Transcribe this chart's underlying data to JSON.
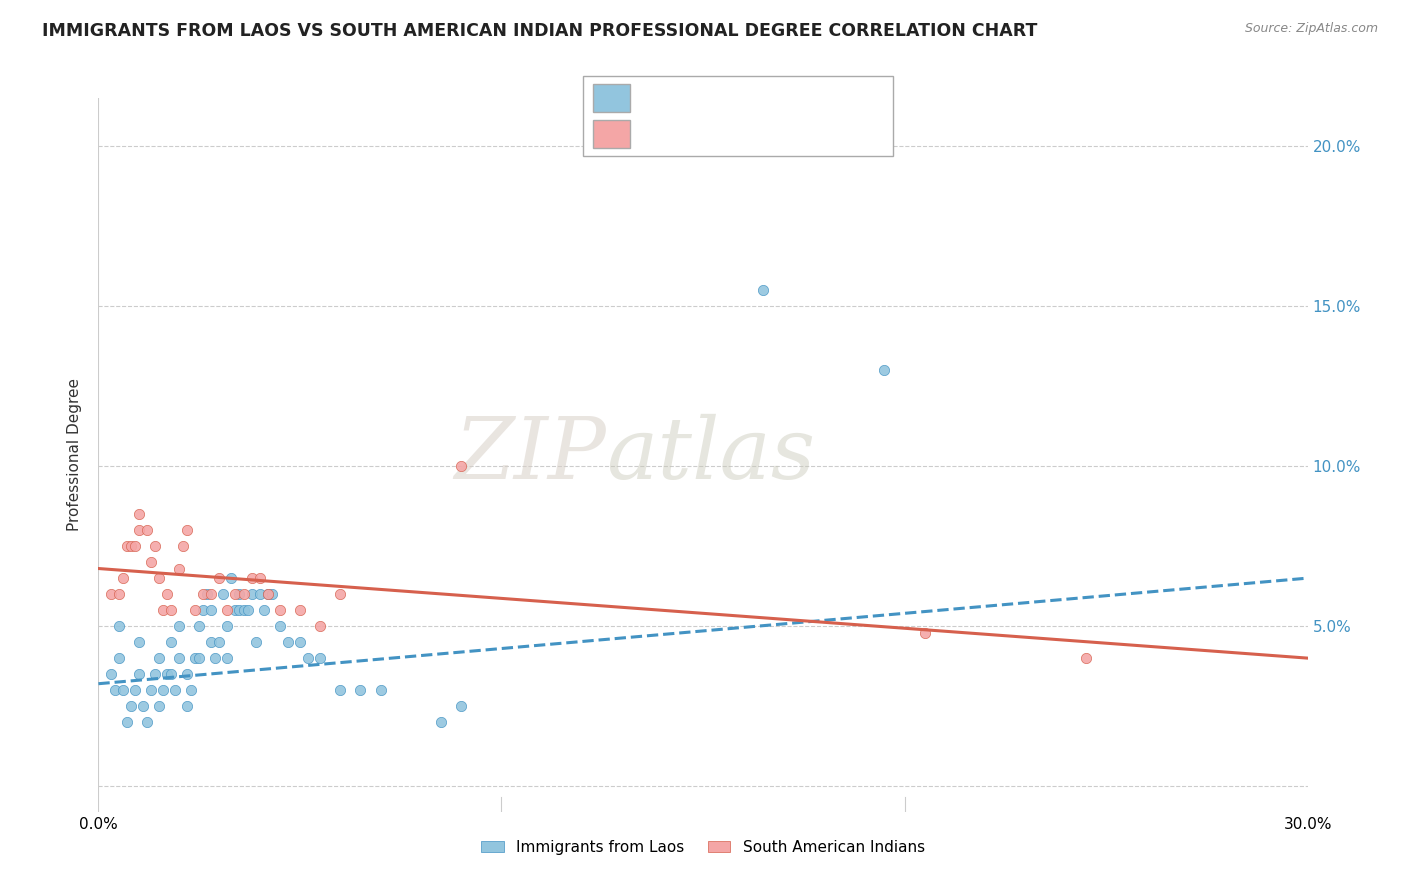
{
  "title": "IMMIGRANTS FROM LAOS VS SOUTH AMERICAN INDIAN PROFESSIONAL DEGREE CORRELATION CHART",
  "source": "Source: ZipAtlas.com",
  "ylabel": "Professional Degree",
  "watermark_zip": "ZIP",
  "watermark_atlas": "atlas",
  "xlim": [
    0.0,
    0.3
  ],
  "ylim": [
    -0.008,
    0.215
  ],
  "yticks": [
    0.0,
    0.05,
    0.1,
    0.15,
    0.2
  ],
  "color_blue": "#92c5de",
  "color_pink": "#f4a6a6",
  "color_blue_line": "#4393c3",
  "color_pink_line": "#d6604d",
  "color_grid": "#cccccc",
  "series1_label": "Immigrants from Laos",
  "series2_label": "South American Indians",
  "blue_scatter_x": [
    0.003,
    0.004,
    0.005,
    0.005,
    0.006,
    0.007,
    0.008,
    0.009,
    0.01,
    0.01,
    0.011,
    0.012,
    0.013,
    0.014,
    0.015,
    0.015,
    0.016,
    0.017,
    0.018,
    0.018,
    0.019,
    0.02,
    0.02,
    0.022,
    0.022,
    0.023,
    0.024,
    0.025,
    0.025,
    0.026,
    0.027,
    0.028,
    0.028,
    0.029,
    0.03,
    0.031,
    0.032,
    0.032,
    0.033,
    0.034,
    0.035,
    0.035,
    0.036,
    0.037,
    0.038,
    0.039,
    0.04,
    0.041,
    0.042,
    0.043,
    0.045,
    0.047,
    0.05,
    0.052,
    0.055,
    0.06,
    0.065,
    0.07,
    0.085,
    0.09,
    0.165,
    0.195
  ],
  "blue_scatter_y": [
    0.035,
    0.03,
    0.04,
    0.05,
    0.03,
    0.02,
    0.025,
    0.03,
    0.035,
    0.045,
    0.025,
    0.02,
    0.03,
    0.035,
    0.025,
    0.04,
    0.03,
    0.035,
    0.035,
    0.045,
    0.03,
    0.04,
    0.05,
    0.025,
    0.035,
    0.03,
    0.04,
    0.04,
    0.05,
    0.055,
    0.06,
    0.045,
    0.055,
    0.04,
    0.045,
    0.06,
    0.04,
    0.05,
    0.065,
    0.055,
    0.055,
    0.06,
    0.055,
    0.055,
    0.06,
    0.045,
    0.06,
    0.055,
    0.06,
    0.06,
    0.05,
    0.045,
    0.045,
    0.04,
    0.04,
    0.03,
    0.03,
    0.03,
    0.02,
    0.025,
    0.155,
    0.13
  ],
  "pink_scatter_x": [
    0.003,
    0.005,
    0.006,
    0.007,
    0.008,
    0.009,
    0.01,
    0.01,
    0.012,
    0.013,
    0.014,
    0.015,
    0.016,
    0.017,
    0.018,
    0.02,
    0.021,
    0.022,
    0.024,
    0.026,
    0.028,
    0.03,
    0.032,
    0.034,
    0.036,
    0.038,
    0.04,
    0.042,
    0.045,
    0.05,
    0.055,
    0.06,
    0.09,
    0.205,
    0.245
  ],
  "pink_scatter_y": [
    0.06,
    0.06,
    0.065,
    0.075,
    0.075,
    0.075,
    0.08,
    0.085,
    0.08,
    0.07,
    0.075,
    0.065,
    0.055,
    0.06,
    0.055,
    0.068,
    0.075,
    0.08,
    0.055,
    0.06,
    0.06,
    0.065,
    0.055,
    0.06,
    0.06,
    0.065,
    0.065,
    0.06,
    0.055,
    0.055,
    0.05,
    0.06,
    0.1,
    0.048,
    0.04
  ],
  "blue_trend_x": [
    0.0,
    0.3
  ],
  "blue_trend_y": [
    0.032,
    0.065
  ],
  "pink_trend_x": [
    0.0,
    0.3
  ],
  "pink_trend_y": [
    0.068,
    0.04
  ]
}
